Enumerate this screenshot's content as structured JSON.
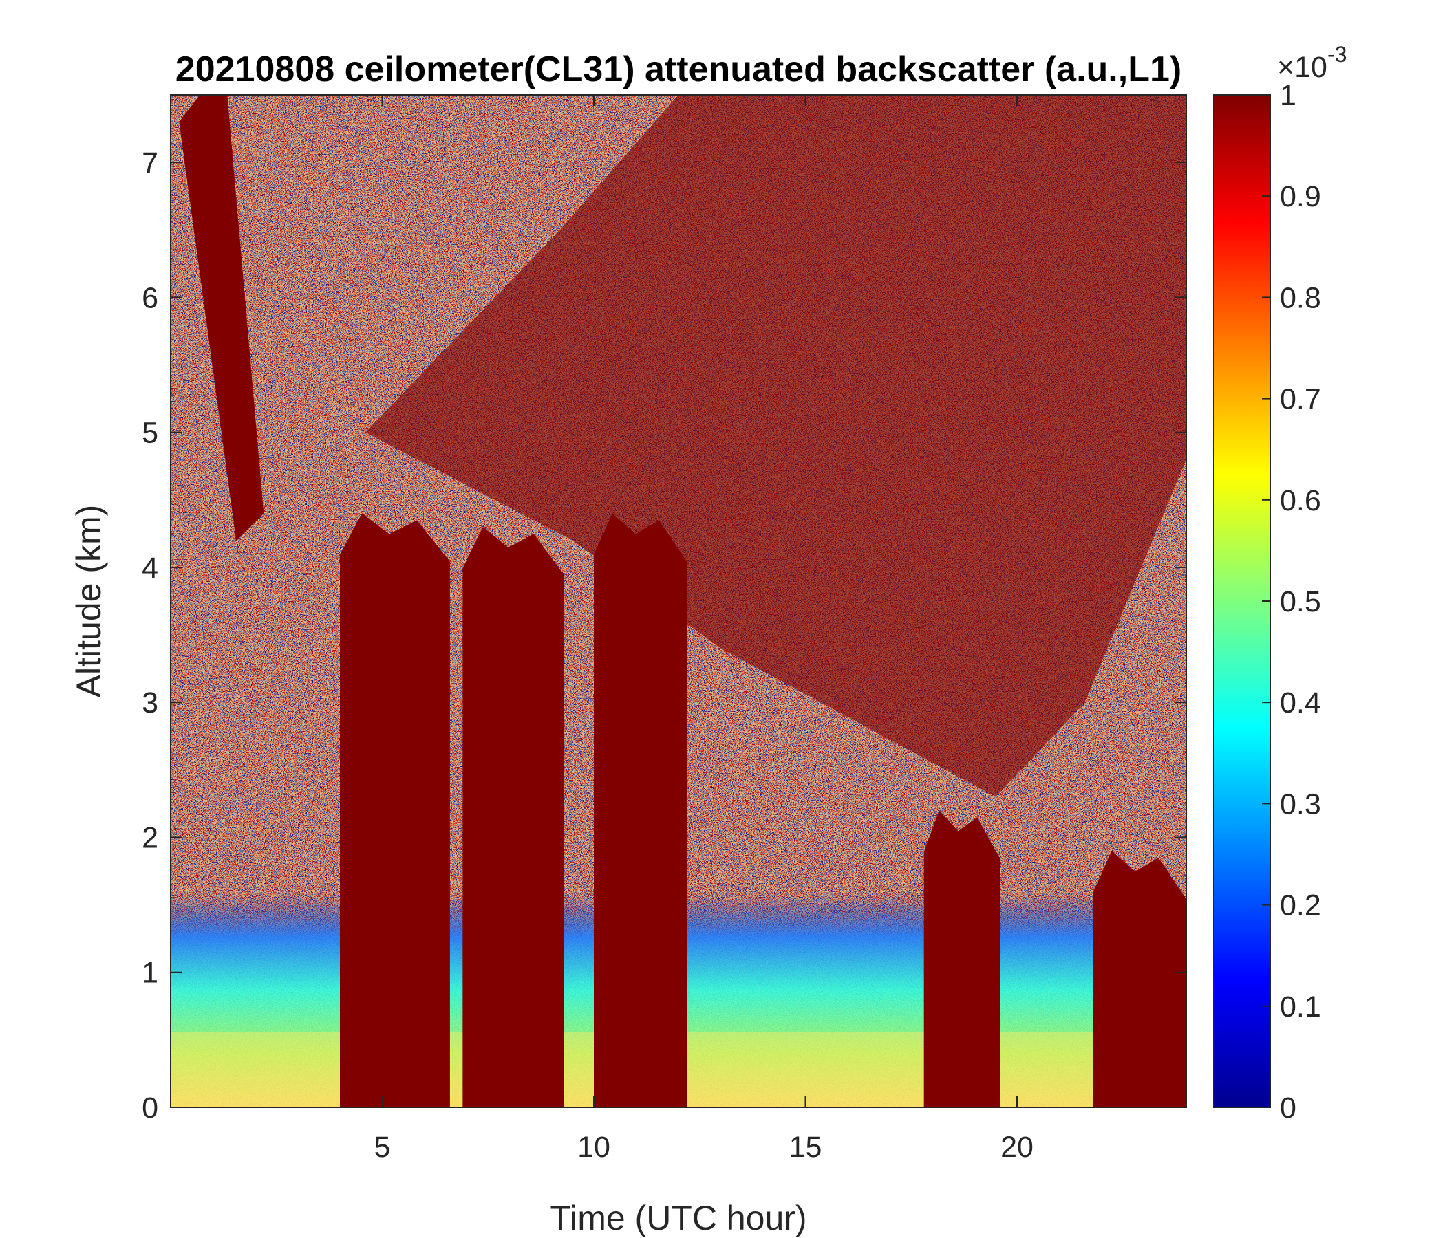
{
  "chart_data": {
    "type": "heatmap",
    "title": "20210808 ceilometer(CL31) attenuated backscatter (a.u.,L1)",
    "xlabel": "Time (UTC hour)",
    "ylabel": "Altitude (km)",
    "xlim": [
      0,
      24
    ],
    "ylim": [
      0,
      7.5
    ],
    "x_ticks": [
      5,
      10,
      15,
      20
    ],
    "y_ticks": [
      0,
      1,
      2,
      3,
      4,
      5,
      6,
      7
    ],
    "colorbar": {
      "colormap": "jet",
      "range": [
        0,
        1
      ],
      "ticks": [
        0,
        0.1,
        0.2,
        0.3,
        0.4,
        0.5,
        0.6,
        0.7,
        0.8,
        0.9,
        1
      ],
      "exponent_label": "×10^-3",
      "exponent_base": "×10",
      "exponent_power": "-3"
    },
    "features": {
      "cloud_segments": [
        {
          "x_start": 4.0,
          "x_end": 6.6,
          "top_km": 4.4
        },
        {
          "x_start": 6.9,
          "x_end": 9.3,
          "top_km": 4.3
        },
        {
          "x_start": 10.0,
          "x_end": 12.2,
          "top_km": 4.4
        },
        {
          "x_start": 17.8,
          "x_end": 19.6,
          "top_km": 2.2
        },
        {
          "x_start": 21.8,
          "x_end": 24.0,
          "top_km": 1.9
        }
      ],
      "boundary_layer_top_km": 0.6,
      "saturated_upper_plume": {
        "x_start": 0.2,
        "x_end": 2.2,
        "alt_start_km": 7.3,
        "alt_end_km": 4.4
      },
      "upper_region": "high-noise saturated mix above ~4 km"
    }
  }
}
